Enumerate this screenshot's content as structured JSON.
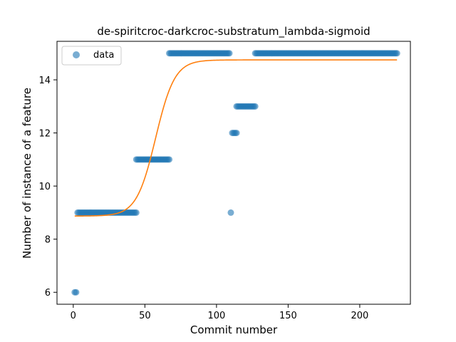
{
  "chart_data": {
    "type": "scatter",
    "title": "de-spiritcroc-darkcroc-substratum_lambda-sigmoid",
    "xlabel": "Commit number",
    "ylabel": "Number of instance of a feature",
    "xlim": [
      -11.35,
      235.35
    ],
    "ylim": [
      5.55,
      15.45
    ],
    "xticks": [
      0,
      50,
      100,
      150,
      200
    ],
    "yticks": [
      6,
      8,
      10,
      12,
      14
    ],
    "grid": false,
    "legend": {
      "position": "upper-left",
      "entries": [
        "data"
      ]
    },
    "colors": {
      "data": "#1f77b4",
      "fit": "#ff7f0e"
    },
    "series": [
      {
        "name": "data",
        "kind": "scatter",
        "segments": [
          {
            "x_start": 1,
            "x_end": 2,
            "y": 6
          },
          {
            "x_start": 3,
            "x_end": 44,
            "y": 9
          },
          {
            "x_start": 44,
            "x_end": 67,
            "y": 11
          },
          {
            "x_start": 67,
            "x_end": 109,
            "y": 15
          },
          {
            "x_start": 110,
            "x_end": 110,
            "y": 9
          },
          {
            "x_start": 111,
            "x_end": 114,
            "y": 12
          },
          {
            "x_start": 114,
            "x_end": 127,
            "y": 13
          },
          {
            "x_start": 127,
            "x_end": 226,
            "y": 15
          }
        ]
      },
      {
        "kind": "line",
        "function": "sigmoid",
        "x_range": [
          1,
          226
        ],
        "params": {
          "lower": 8.87,
          "upper": 14.75,
          "midpoint": 57.5,
          "rate": 0.15
        }
      }
    ]
  }
}
